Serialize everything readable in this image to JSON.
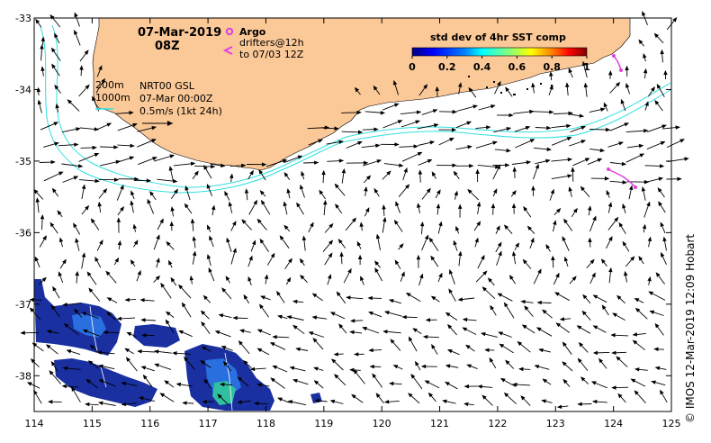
{
  "header": {
    "date": "07-Mar-2019",
    "time": "08Z"
  },
  "legend": {
    "argo_label": "Argo",
    "drifters_line1": "drifters@12h",
    "drifters_line2": "to 07/03 12Z",
    "argo_color": "#e040e0",
    "drifter_color": "#e040e0"
  },
  "colorbar": {
    "title": "std dev of 4hr SST comp",
    "ticks": [
      "0",
      "0.2",
      "0.4",
      "0.6",
      "0.8",
      "1"
    ],
    "colors": [
      "#00007f",
      "#0000ff",
      "#0080ff",
      "#00ffff",
      "#80ff80",
      "#ffff00",
      "#ff8000",
      "#ff0000",
      "#7f0000"
    ]
  },
  "annotations": {
    "isobath_200": "200m",
    "isobath_1000": "1000m",
    "product": "NRT00 GSL",
    "product_time": "07-Mar 00:00Z",
    "scale_label": "0.5m/s (1kt 24h)"
  },
  "axes": {
    "x_ticks": [
      "114",
      "115",
      "116",
      "117",
      "118",
      "119",
      "120",
      "121",
      "122",
      "123",
      "124",
      "125"
    ],
    "y_ticks": [
      "-33",
      "-34",
      "-35",
      "-36",
      "-37",
      "-38"
    ],
    "x_range": [
      114,
      125
    ],
    "y_range": [
      -38.5,
      -33
    ]
  },
  "credit": "© IMOS 12-Mar-2019 12:09 Hobart",
  "colors": {
    "land": "#fbc897",
    "isobath": "#30e0e0",
    "sst_low": "#1a2fa0",
    "sst_mid": "#2a6fe0",
    "sst_high": "#30c0a0"
  }
}
